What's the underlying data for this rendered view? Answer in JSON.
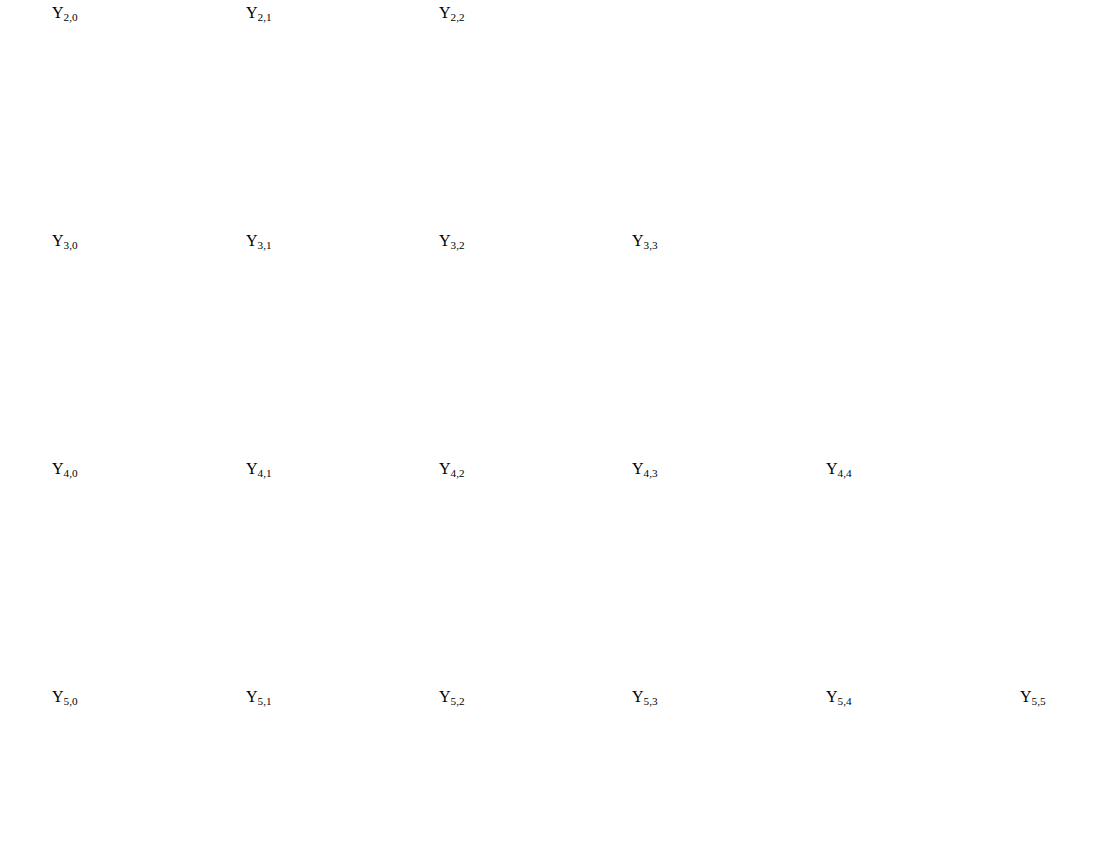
{
  "chart_data": [
    {
      "type": "surface",
      "title": "Y",
      "subscript": "2,0",
      "l": 2,
      "m": 0,
      "tick_labels": false
    },
    {
      "type": "surface",
      "title": "Y",
      "subscript": "2,1",
      "l": 2,
      "m": 1,
      "tick_labels": false
    },
    {
      "type": "surface",
      "title": "Y",
      "subscript": "2,2",
      "l": 2,
      "m": 2,
      "tick_labels": false
    },
    {
      "type": "surface",
      "title": "Y",
      "subscript": "3,0",
      "l": 3,
      "m": 0,
      "tick_labels": false
    },
    {
      "type": "surface",
      "title": "Y",
      "subscript": "3,1",
      "l": 3,
      "m": 1,
      "tick_labels": false
    },
    {
      "type": "surface",
      "title": "Y",
      "subscript": "3,2",
      "l": 3,
      "m": 2,
      "tick_labels": false
    },
    {
      "type": "surface",
      "title": "Y",
      "subscript": "3,3",
      "l": 3,
      "m": 3,
      "tick_labels": false
    },
    {
      "type": "surface",
      "title": "Y",
      "subscript": "4,0",
      "l": 4,
      "m": 0,
      "tick_labels": false
    },
    {
      "type": "surface",
      "title": "Y",
      "subscript": "4,1",
      "l": 4,
      "m": 1,
      "tick_labels": false
    },
    {
      "type": "surface",
      "title": "Y",
      "subscript": "4,2",
      "l": 4,
      "m": 2,
      "tick_labels": false
    },
    {
      "type": "surface",
      "title": "Y",
      "subscript": "4,3",
      "l": 4,
      "m": 3,
      "tick_labels": false
    },
    {
      "type": "surface",
      "title": "Y",
      "subscript": "4,4",
      "l": 4,
      "m": 4,
      "tick_labels": false
    },
    {
      "type": "surface",
      "title": "Y",
      "subscript": "5,0",
      "l": 5,
      "m": 0,
      "tick_labels": false
    },
    {
      "type": "surface",
      "title": "Y",
      "subscript": "5,1",
      "l": 5,
      "m": 1,
      "tick_labels": false
    },
    {
      "type": "surface",
      "title": "Y",
      "subscript": "5,2",
      "l": 5,
      "m": 2,
      "tick_labels": false
    },
    {
      "type": "surface",
      "title": "Y",
      "subscript": "5,3",
      "l": 5,
      "m": 3,
      "tick_labels": false
    },
    {
      "type": "surface",
      "title": "Y",
      "subscript": "5,4",
      "l": 5,
      "m": 4,
      "tick_labels": false
    },
    {
      "type": "surface",
      "title": "Y",
      "subscript": "5,5",
      "l": 5,
      "m": 5,
      "tick_labels": false
    }
  ]
}
